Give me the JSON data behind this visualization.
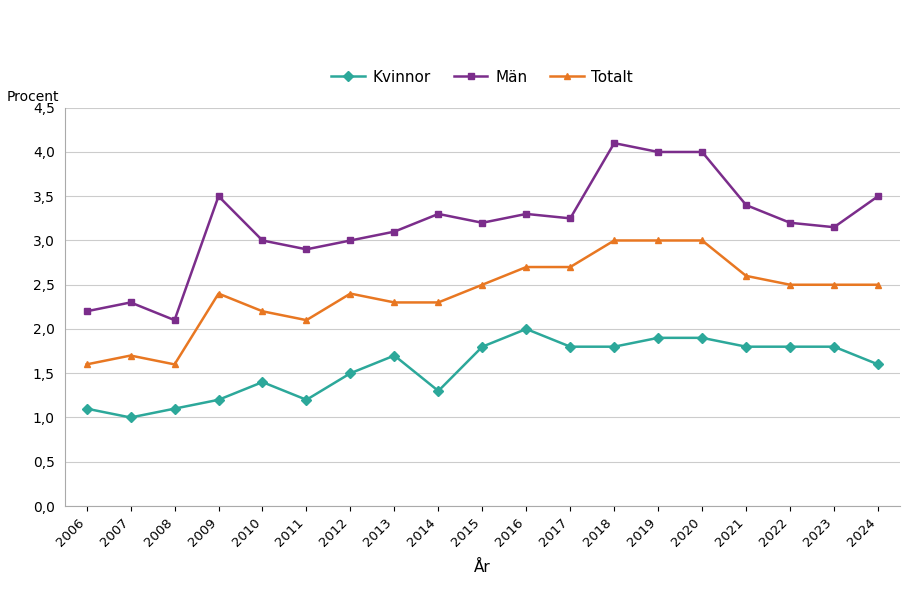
{
  "years": [
    2006,
    2007,
    2008,
    2009,
    2010,
    2011,
    2012,
    2013,
    2014,
    2015,
    2016,
    2017,
    2018,
    2019,
    2020,
    2021,
    2022,
    2023,
    2024
  ],
  "kvinnor": [
    1.1,
    1.0,
    1.1,
    1.2,
    1.4,
    1.2,
    1.5,
    1.7,
    1.3,
    1.8,
    2.0,
    1.8,
    1.8,
    1.9,
    1.9,
    1.8,
    1.8,
    1.8,
    1.6
  ],
  "man": [
    2.2,
    2.3,
    2.1,
    3.5,
    3.0,
    2.9,
    3.0,
    3.1,
    3.3,
    3.2,
    3.3,
    3.25,
    4.1,
    4.0,
    4.0,
    3.4,
    3.2,
    3.15,
    3.5
  ],
  "totalt": [
    1.6,
    1.7,
    1.6,
    2.4,
    2.2,
    2.1,
    2.4,
    2.3,
    2.3,
    2.5,
    2.7,
    2.7,
    3.0,
    3.0,
    3.0,
    2.6,
    2.5,
    2.5,
    2.5
  ],
  "kvinnor_color": "#2ca89a",
  "man_color": "#7b2d8b",
  "totalt_color": "#e87722",
  "xlabel": "År",
  "ylabel": "Procent",
  "ylim": [
    0.0,
    4.5
  ],
  "yticks": [
    0.0,
    0.5,
    1.0,
    1.5,
    2.0,
    2.5,
    3.0,
    3.5,
    4.0,
    4.5
  ],
  "legend_labels": [
    "Kvinnor",
    "Män",
    "Totalt"
  ],
  "background_color": "#ffffff",
  "grid_color": "#cccccc",
  "spine_color": "#aaaaaa",
  "marker_size": 5,
  "linewidth": 1.8
}
